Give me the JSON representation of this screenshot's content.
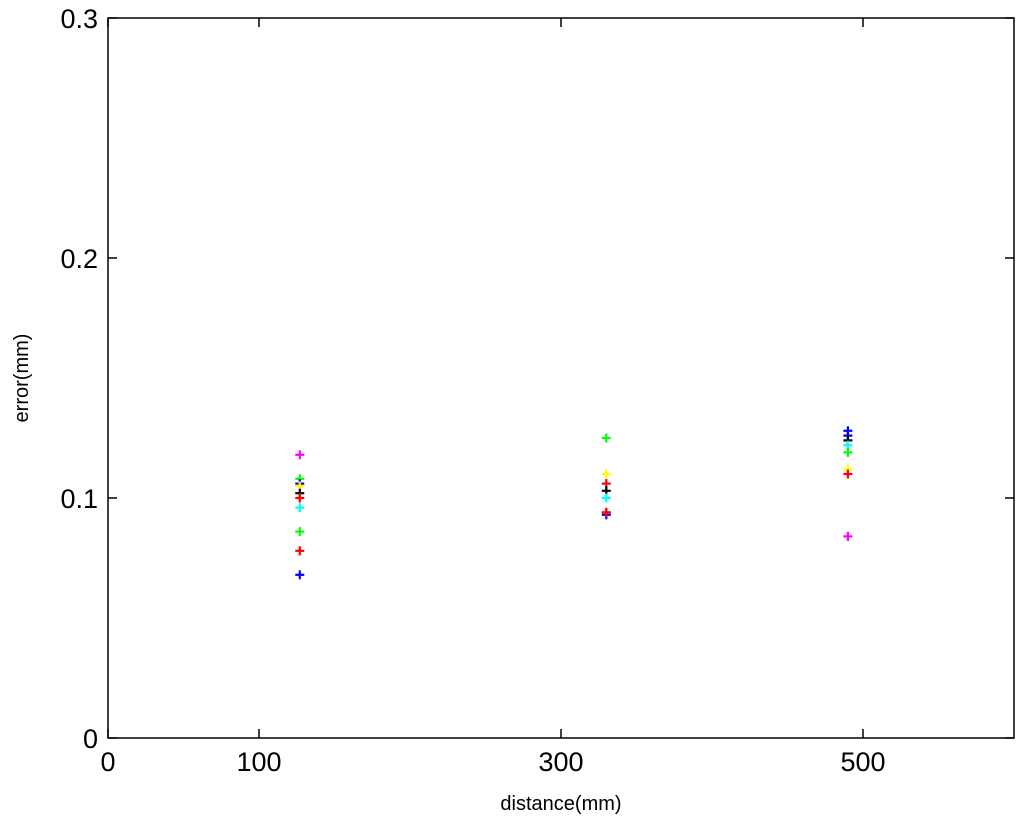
{
  "chart_data": {
    "type": "scatter",
    "title": "",
    "xlabel": "distance(mm)",
    "ylabel": "error(mm)",
    "xlim": [
      0,
      600
    ],
    "ylim": [
      0,
      0.3
    ],
    "x_ticks": [
      {
        "value": 0,
        "label": "0"
      },
      {
        "value": 100,
        "label": "100"
      },
      {
        "value": 300,
        "label": "300"
      },
      {
        "value": 500,
        "label": "500"
      }
    ],
    "y_ticks": [
      {
        "value": 0,
        "label": "0"
      },
      {
        "value": 0.1,
        "label": "0.1"
      },
      {
        "value": 0.2,
        "label": "0.2"
      },
      {
        "value": 0.3,
        "label": "0.3"
      }
    ],
    "grid": false,
    "box": true,
    "marker": "+",
    "points": [
      {
        "x": 127,
        "y": 0.118,
        "color": "#ff00ff"
      },
      {
        "x": 127,
        "y": 0.108,
        "color": "#00ff00"
      },
      {
        "x": 127,
        "y": 0.106,
        "color": "#0000ff"
      },
      {
        "x": 127,
        "y": 0.105,
        "color": "#ffff00"
      },
      {
        "x": 127,
        "y": 0.102,
        "color": "#000000"
      },
      {
        "x": 127,
        "y": 0.1,
        "color": "#ff0000"
      },
      {
        "x": 127,
        "y": 0.096,
        "color": "#00ffff"
      },
      {
        "x": 127,
        "y": 0.086,
        "color": "#00ff00"
      },
      {
        "x": 127,
        "y": 0.078,
        "color": "#ff0000"
      },
      {
        "x": 127,
        "y": 0.068,
        "color": "#0000ff"
      },
      {
        "x": 330,
        "y": 0.125,
        "color": "#00ff00"
      },
      {
        "x": 330,
        "y": 0.11,
        "color": "#ffff00"
      },
      {
        "x": 330,
        "y": 0.106,
        "color": "#ff0000"
      },
      {
        "x": 330,
        "y": 0.103,
        "color": "#000000"
      },
      {
        "x": 330,
        "y": 0.1,
        "color": "#00ffff"
      },
      {
        "x": 330,
        "y": 0.094,
        "color": "#ff00ff"
      },
      {
        "x": 330,
        "y": 0.093,
        "color": "#0000ff"
      },
      {
        "x": 330,
        "y": 0.094,
        "color": "#ff0000"
      },
      {
        "x": 490,
        "y": 0.128,
        "color": "#0000ff"
      },
      {
        "x": 490,
        "y": 0.126,
        "color": "#0000ff"
      },
      {
        "x": 490,
        "y": 0.124,
        "color": "#000000"
      },
      {
        "x": 490,
        "y": 0.122,
        "color": "#00ffff"
      },
      {
        "x": 490,
        "y": 0.119,
        "color": "#00ff00"
      },
      {
        "x": 490,
        "y": 0.112,
        "color": "#ffff00"
      },
      {
        "x": 490,
        "y": 0.11,
        "color": "#ff0000"
      },
      {
        "x": 490,
        "y": 0.084,
        "color": "#ff00ff"
      }
    ]
  }
}
